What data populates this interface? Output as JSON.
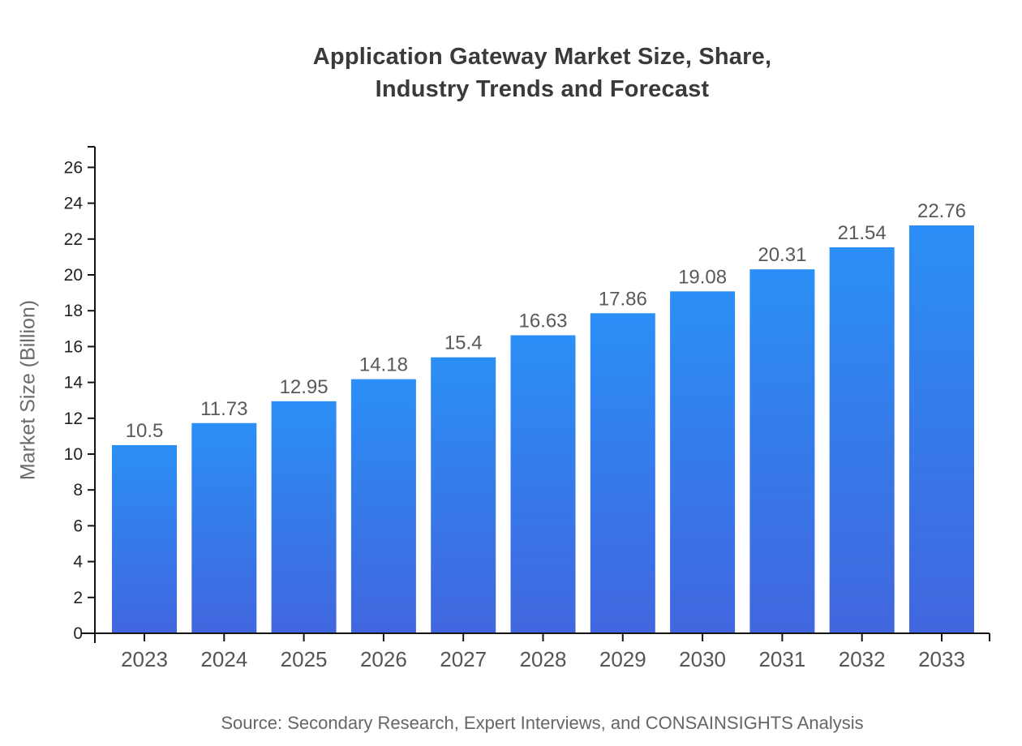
{
  "chart": {
    "title_lines": [
      "Application Gateway Market Size, Share,",
      "Industry Trends and Forecast"
    ],
    "y_axis_label": "Market Size (Billion)",
    "source": "Source: Secondary Research, Expert Interviews, and CONSAINSIGHTS Analysis"
  },
  "chart_data": {
    "type": "bar",
    "title": "Application Gateway Market Size, Share, Industry Trends and Forecast",
    "categories": [
      "2023",
      "2024",
      "2025",
      "2026",
      "2027",
      "2028",
      "2029",
      "2030",
      "2031",
      "2032",
      "2033"
    ],
    "values": [
      10.5,
      11.73,
      12.95,
      14.18,
      15.4,
      16.63,
      17.86,
      19.08,
      20.31,
      21.54,
      22.76
    ],
    "value_labels": [
      "10.5",
      "11.73",
      "12.95",
      "14.18",
      "15.4",
      "16.63",
      "17.86",
      "19.08",
      "20.31",
      "21.54",
      "22.76"
    ],
    "xlabel": "",
    "ylabel": "Market Size (Billion)",
    "ylim": [
      0,
      26
    ],
    "y_ticks": [
      0,
      2,
      4,
      6,
      8,
      10,
      12,
      14,
      16,
      18,
      20,
      22,
      24,
      26
    ],
    "grid": false,
    "legend": "none",
    "bar_gradient_top": "#2b8ff6",
    "bar_gradient_bottom": "#4166de",
    "axis_color": "#141414",
    "y_tick_label_color": "#222222",
    "x_tick_label_color": "#555555",
    "value_label_color": "#595959",
    "source": "Source: Secondary Research, Expert Interviews, and CONSAINSIGHTS Analysis"
  }
}
